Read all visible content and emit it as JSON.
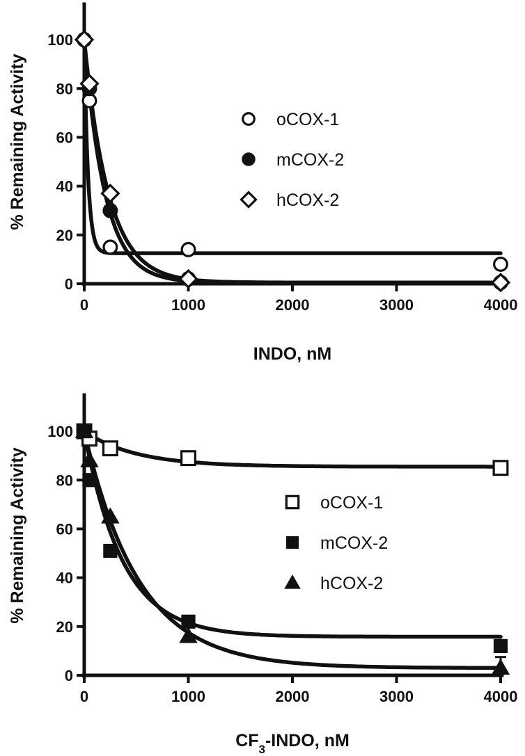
{
  "chart_data": [
    {
      "type": "scatter",
      "xlabel": "INDO, nM",
      "ylabel": "% Remaining Activity",
      "xlim": [
        0,
        4000
      ],
      "ylim": [
        0,
        110
      ],
      "x_ticks": [
        "0",
        "1000",
        "2000",
        "3000",
        "4000"
      ],
      "y_ticks": [
        "0",
        "20",
        "40",
        "60",
        "80",
        "100"
      ],
      "grid": false,
      "legend_position": "upper-right",
      "series": [
        {
          "name": "oCOX-1",
          "marker": "open-circle",
          "x": [
            0,
            50,
            250,
            1000,
            4000
          ],
          "y": [
            100,
            75,
            15,
            14,
            8
          ],
          "fit": {
            "top": 100,
            "plateau": 12.5,
            "k": 0.0275
          }
        },
        {
          "name": "mCOX-2",
          "marker": "filled-circle",
          "x": [
            0,
            50,
            250,
            1000,
            4000
          ],
          "y": [
            100,
            80,
            30,
            2,
            0.5
          ],
          "fit": {
            "top": 100,
            "plateau": 0.5,
            "k": 0.005
          }
        },
        {
          "name": "hCOX-2",
          "marker": "open-diamond",
          "x": [
            0,
            50,
            250,
            1000,
            4000
          ],
          "y": [
            100,
            82,
            37,
            2,
            0.5
          ],
          "fit": {
            "top": 100,
            "plateau": 0.5,
            "k": 0.0043
          }
        }
      ]
    },
    {
      "type": "scatter",
      "xlabel": "CF3-INDO, nM",
      "ylabel": "% Remaining Activity",
      "xlim": [
        0,
        4000
      ],
      "ylim": [
        0,
        110
      ],
      "x_ticks": [
        "0",
        "1000",
        "2000",
        "3000",
        "4000"
      ],
      "y_ticks": [
        "0",
        "20",
        "40",
        "60",
        "80",
        "100"
      ],
      "grid": false,
      "legend_position": "right",
      "series": [
        {
          "name": "oCOX-1",
          "marker": "open-square",
          "x": [
            0,
            50,
            250,
            1000,
            4000
          ],
          "y": [
            100,
            97,
            93,
            89,
            85
          ],
          "fit": {
            "top": 100,
            "plateau": 85.5,
            "k": 0.002
          }
        },
        {
          "name": "mCOX-2",
          "marker": "filled-square",
          "x": [
            0,
            50,
            250,
            1000,
            4000
          ],
          "y": [
            100,
            80,
            51,
            22,
            12
          ],
          "fit": {
            "top": 100,
            "plateau": 15.8,
            "k": 0.0027
          }
        },
        {
          "name": "hCOX-2",
          "marker": "filled-triangle",
          "x": [
            0,
            50,
            250,
            1000,
            4000
          ],
          "y": [
            100,
            88,
            65,
            16,
            3
          ],
          "fit": {
            "top": 100,
            "plateau": 3,
            "k": 0.0019
          }
        }
      ]
    }
  ]
}
